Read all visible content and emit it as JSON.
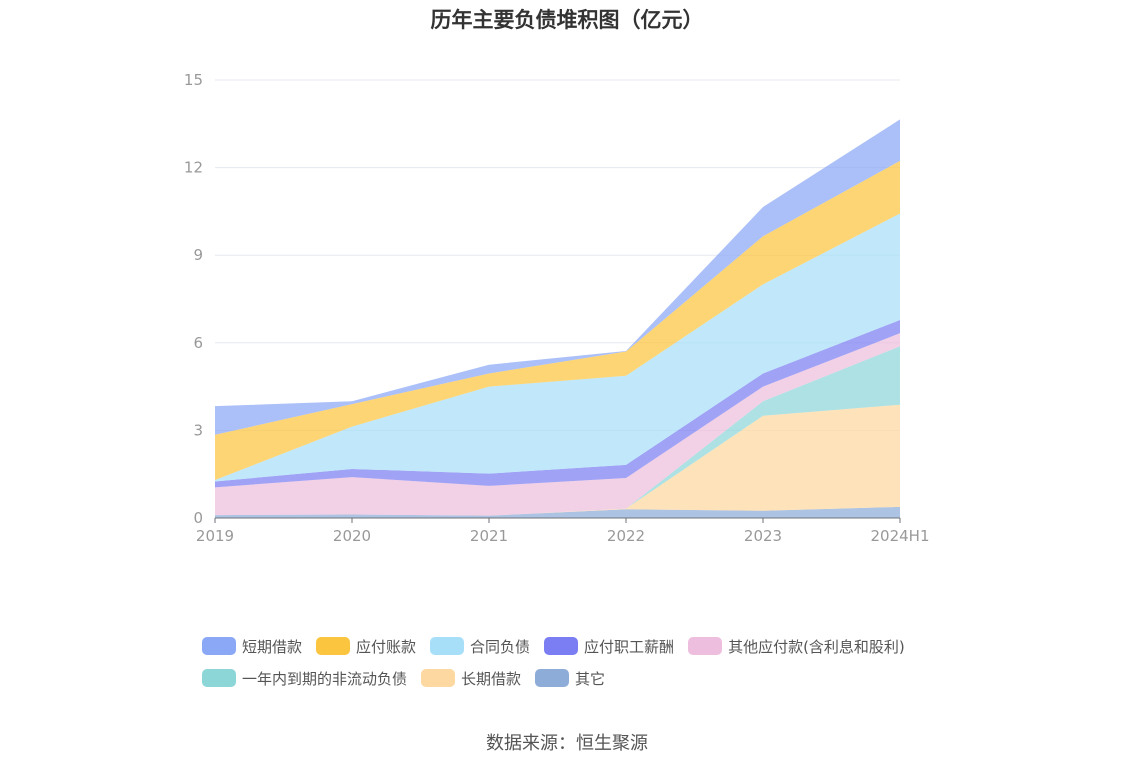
{
  "source_text": "数据来源：恒生聚源",
  "chart_data": {
    "type": "area",
    "stacked": true,
    "title": "历年主要负债堆积图（亿元）",
    "xlabel": "",
    "ylabel": "",
    "x": [
      "2019",
      "2020",
      "2021",
      "2022",
      "2023",
      "2024H1"
    ],
    "ylim": [
      0,
      15
    ],
    "yticks": [
      0,
      3,
      6,
      9,
      12,
      15
    ],
    "grid": true,
    "legend_position": "bottom",
    "series": [
      {
        "name": "其它",
        "color": "#8eacd8",
        "values": [
          0.1,
          0.12,
          0.08,
          0.3,
          0.25,
          0.38
        ]
      },
      {
        "name": "长期借款",
        "color": "#fdd8a0",
        "values": [
          0,
          0,
          0,
          0.02,
          3.25,
          3.5
        ]
      },
      {
        "name": "一年内到期的非流动负债",
        "color": "#8dd6d8",
        "values": [
          0,
          0,
          0,
          0,
          0.5,
          2.0
        ]
      },
      {
        "name": "其他应付款(含利息和股利)",
        "color": "#edbedd",
        "values": [
          0.95,
          1.28,
          1.02,
          1.05,
          0.5,
          0.45
        ]
      },
      {
        "name": "应付职工薪酬",
        "color": "#7b7ef2",
        "values": [
          0.2,
          0.28,
          0.42,
          0.45,
          0.45,
          0.45
        ]
      },
      {
        "name": "合同负债",
        "color": "#a8dff8",
        "values": [
          0.05,
          1.45,
          2.98,
          3.05,
          3.05,
          3.65
        ]
      },
      {
        "name": "应付账款",
        "color": "#fcc540",
        "values": [
          1.55,
          0.77,
          0.45,
          0.83,
          1.65,
          1.8
        ]
      },
      {
        "name": "短期借款",
        "color": "#8aa8f5",
        "values": [
          0.98,
          0.1,
          0.3,
          0.02,
          1.0,
          1.42
        ]
      }
    ]
  }
}
